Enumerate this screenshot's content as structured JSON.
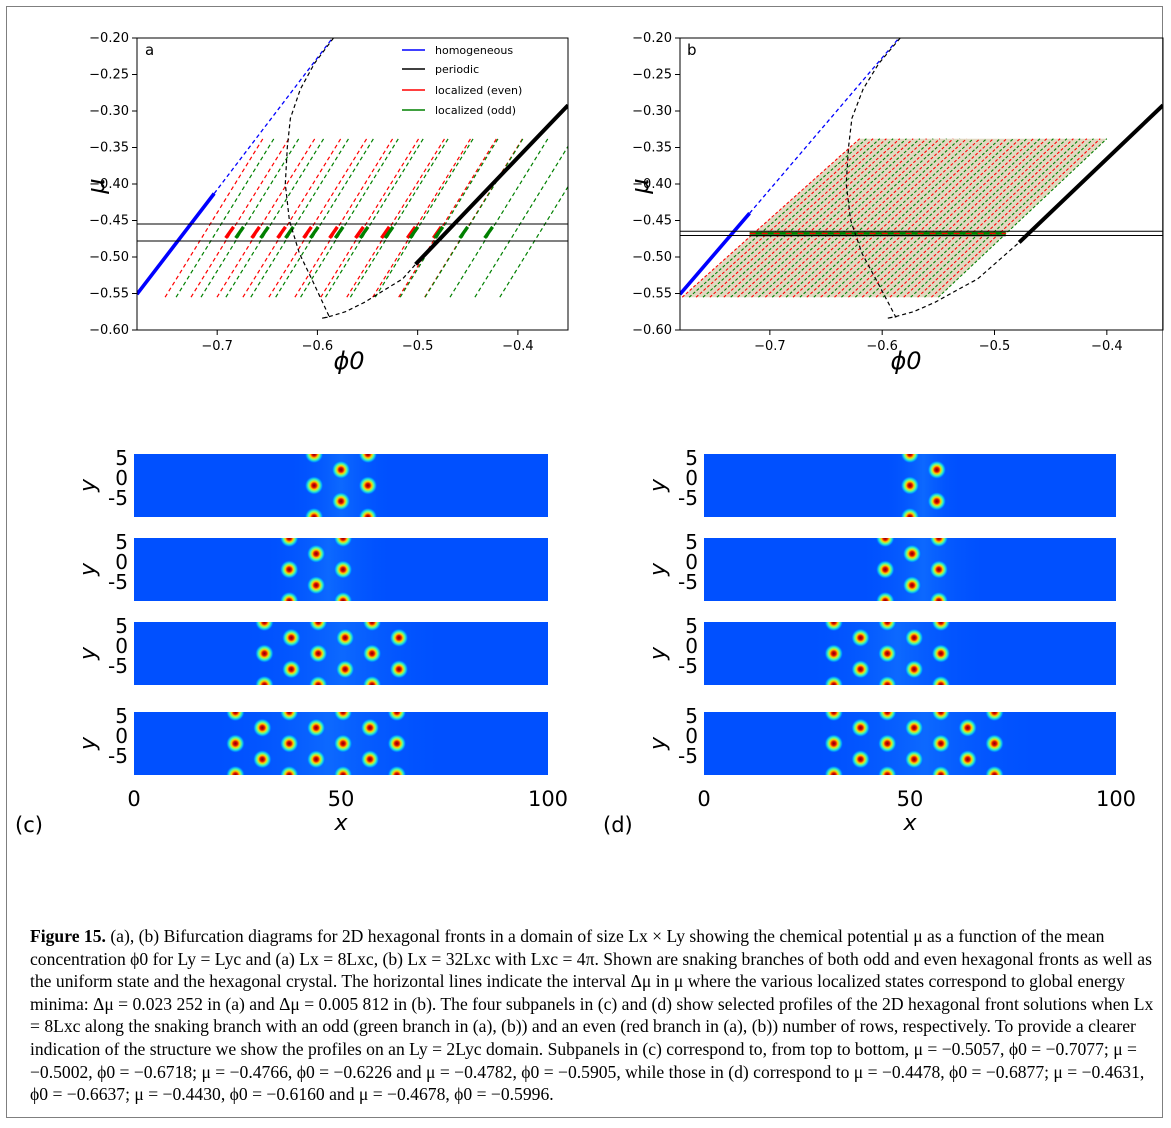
{
  "figure": {
    "label": "Figure 15.",
    "caption": "(a), (b) Bifurcation diagrams for 2D hexagonal fronts in a domain of size Lx × Ly showing the chemical potential μ as a function of the mean concentration ϕ0 for Ly = Lyc and (a) Lx = 8Lxc, (b) Lx = 32Lxc with Lxc = 4π. Shown are snaking branches of both odd and even hexagonal fronts as well as the uniform state and the hexagonal crystal. The horizontal lines indicate the interval Δμ in μ where the various localized states correspond to global energy minima: Δμ = 0.023 252 in (a) and Δμ = 0.005 812 in (b). The four subpanels in (c) and (d) show selected profiles of the 2D hexagonal front solutions when Lx = 8Lxc along the snaking branch with an odd (green branch in (a), (b)) and an even (red branch in (a), (b)) number of rows, respectively. To provide a clearer indication of the structure we show the profiles on an Ly = 2Lyc domain. Subpanels in (c) correspond to, from top to bottom, μ = −0.5057, ϕ0 = −0.7077; μ = −0.5002, ϕ0 = −0.6718; μ = −0.4766, ϕ0 = −0.6226 and μ = −0.4782, ϕ0 = −0.5905, while those in (d) correspond to μ = −0.4478, ϕ0 = −0.6877; μ = −0.4631, ϕ0 = −0.6637; μ = −0.4430, ϕ0 = −0.6160 and μ = −0.4678, ϕ0 = −0.5996."
  },
  "colors": {
    "homogeneous": "#0000ff",
    "periodic": "#000000",
    "even": "#ff0000",
    "odd": "#008000"
  },
  "chart_data": [
    {
      "panel": "a",
      "type": "line",
      "xlabel": "ϕ0",
      "ylabel": "μ",
      "xlim": [
        -0.78,
        -0.35
      ],
      "ylim": [
        -0.6,
        -0.2
      ],
      "xticks": [
        "−0.7",
        "−0.6",
        "−0.5",
        "−0.4"
      ],
      "yticks": [
        "−0.20",
        "−0.25",
        "−0.30",
        "−0.35",
        "−0.40",
        "−0.45",
        "−0.50",
        "−0.55",
        "−0.60"
      ],
      "legend": [
        "homogeneous",
        "periodic",
        "localized (even)",
        "localized (odd)"
      ],
      "legend_position": "top-right",
      "hlines": [
        -0.4548,
        -0.478
      ],
      "homogeneous_stable": {
        "x": [
          -0.78,
          -0.703
        ],
        "y": [
          -0.551,
          -0.413
        ]
      },
      "homogeneous_unstable": {
        "x": [
          -0.703,
          -0.585
        ],
        "y": [
          -0.413,
          -0.2
        ]
      },
      "periodic_stable": {
        "x": [
          -0.502,
          -0.35
        ],
        "y": [
          -0.51,
          -0.292
        ]
      },
      "periodic_unstable": {
        "x": [
          -0.584,
          -0.603,
          -0.617,
          -0.627,
          -0.63,
          -0.632,
          -0.628,
          -0.618,
          -0.604,
          -0.588,
          -0.596,
          -0.589,
          -0.572,
          -0.553,
          -0.533,
          -0.515,
          -0.502
        ],
        "y": [
          -0.2,
          -0.235,
          -0.27,
          -0.31,
          -0.35,
          -0.4,
          -0.45,
          -0.495,
          -0.535,
          -0.582,
          -0.584,
          -0.582,
          -0.575,
          -0.562,
          -0.545,
          -0.53,
          -0.51
        ]
      },
      "snaking_even": {
        "x_start": -0.752,
        "x_end": -0.493,
        "count": 11,
        "y_low": -0.555,
        "y_high": -0.337
      },
      "snaking_odd": {
        "x_start": -0.741,
        "x_end": -0.418,
        "count": 14,
        "y_low": -0.555,
        "y_high": -0.337
      }
    },
    {
      "panel": "b",
      "type": "line",
      "xlabel": "ϕ0",
      "ylabel": "μ",
      "xlim": [
        -0.78,
        -0.35
      ],
      "ylim": [
        -0.6,
        -0.2
      ],
      "xticks": [
        "−0.7",
        "−0.6",
        "−0.5",
        "−0.4"
      ],
      "yticks": [
        "−0.20",
        "−0.25",
        "−0.30",
        "−0.35",
        "−0.40",
        "−0.45",
        "−0.50",
        "−0.55",
        "−0.60"
      ],
      "hlines": [
        -0.4648,
        -0.4706
      ],
      "homogeneous_stable": {
        "x": [
          -0.78,
          -0.718
        ],
        "y": [
          -0.551,
          -0.44
        ]
      },
      "homogeneous_unstable": {
        "x": [
          -0.718,
          -0.585
        ],
        "y": [
          -0.44,
          -0.2
        ]
      },
      "periodic_stable": {
        "x": [
          -0.478,
          -0.35
        ],
        "y": [
          -0.48,
          -0.292
        ]
      },
      "periodic_unstable": {
        "x": [
          -0.584,
          -0.603,
          -0.617,
          -0.627,
          -0.63,
          -0.632,
          -0.628,
          -0.618,
          -0.604,
          -0.588,
          -0.596,
          -0.589,
          -0.572,
          -0.553,
          -0.533,
          -0.515,
          -0.478
        ],
        "y": [
          -0.2,
          -0.235,
          -0.27,
          -0.31,
          -0.35,
          -0.4,
          -0.45,
          -0.495,
          -0.535,
          -0.582,
          -0.584,
          -0.582,
          -0.575,
          -0.562,
          -0.545,
          -0.53,
          -0.48
        ]
      },
      "snaking_region": {
        "x_low_start": -0.778,
        "x_low_end": -0.55,
        "x_high_start": -0.62,
        "x_high_end": -0.4,
        "y_low": -0.555,
        "y_high": -0.338
      }
    }
  ],
  "profiles": {
    "xticks": [
      "0",
      "50",
      "100"
    ],
    "xlabel": "x",
    "ylabel": "y",
    "yticks": [
      "5",
      "0",
      "-5"
    ],
    "c_label": "(c)",
    "d_label": "(d)",
    "c": [
      {
        "x_min": 43.5,
        "x_max": 56.5
      },
      {
        "x_min": 37.5,
        "x_max": 56.5
      },
      {
        "x_min": 31.5,
        "x_max": 69
      },
      {
        "x_min": 24.5,
        "x_max": 69.5
      }
    ],
    "d": [
      {
        "x_min": 50,
        "x_max": 56.5
      },
      {
        "x_min": 44,
        "x_max": 62.5
      },
      {
        "x_min": 31.5,
        "x_max": 62.5
      },
      {
        "x_min": 31.5,
        "x_max": 75.5
      }
    ]
  }
}
